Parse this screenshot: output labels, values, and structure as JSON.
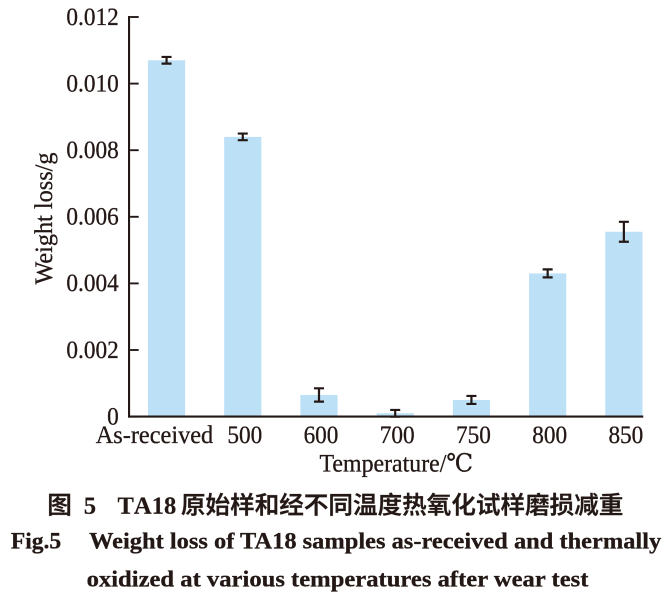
{
  "figure": {
    "caption_zh": "图 5　TA18 原始样和经不同温度热氧化试样磨损减重",
    "caption_en_prefix": "Fig.5",
    "caption_en_main": "Weight loss of TA18 samples as-received and thermally",
    "caption_en_line2": "oxidized at various temperatures after wear test"
  },
  "chart_data": {
    "type": "bar",
    "title": "",
    "xlabel": "Temperature/℃",
    "ylabel": "Weight loss/g",
    "categories": [
      "As-received",
      "500",
      "600",
      "700",
      "750",
      "800",
      "850"
    ],
    "values": [
      0.0107,
      0.0084,
      0.00065,
      0.0001,
      0.0005,
      0.0043,
      0.00555
    ],
    "errors": [
      0.0001,
      0.0001,
      0.0002,
      0.0001,
      0.00012,
      0.00012,
      0.0003
    ],
    "ylim": [
      0,
      0.012
    ],
    "yticks": [
      0,
      0.002,
      0.004,
      0.006,
      0.008,
      0.01,
      0.012
    ],
    "ytick_labels": [
      "0",
      "0.002",
      "0.004",
      "0.006",
      "0.008",
      "0.010",
      "0.012"
    ],
    "grid": false,
    "legend": null,
    "bar_color": "#BCE0F5",
    "ink_color": "#231815"
  }
}
